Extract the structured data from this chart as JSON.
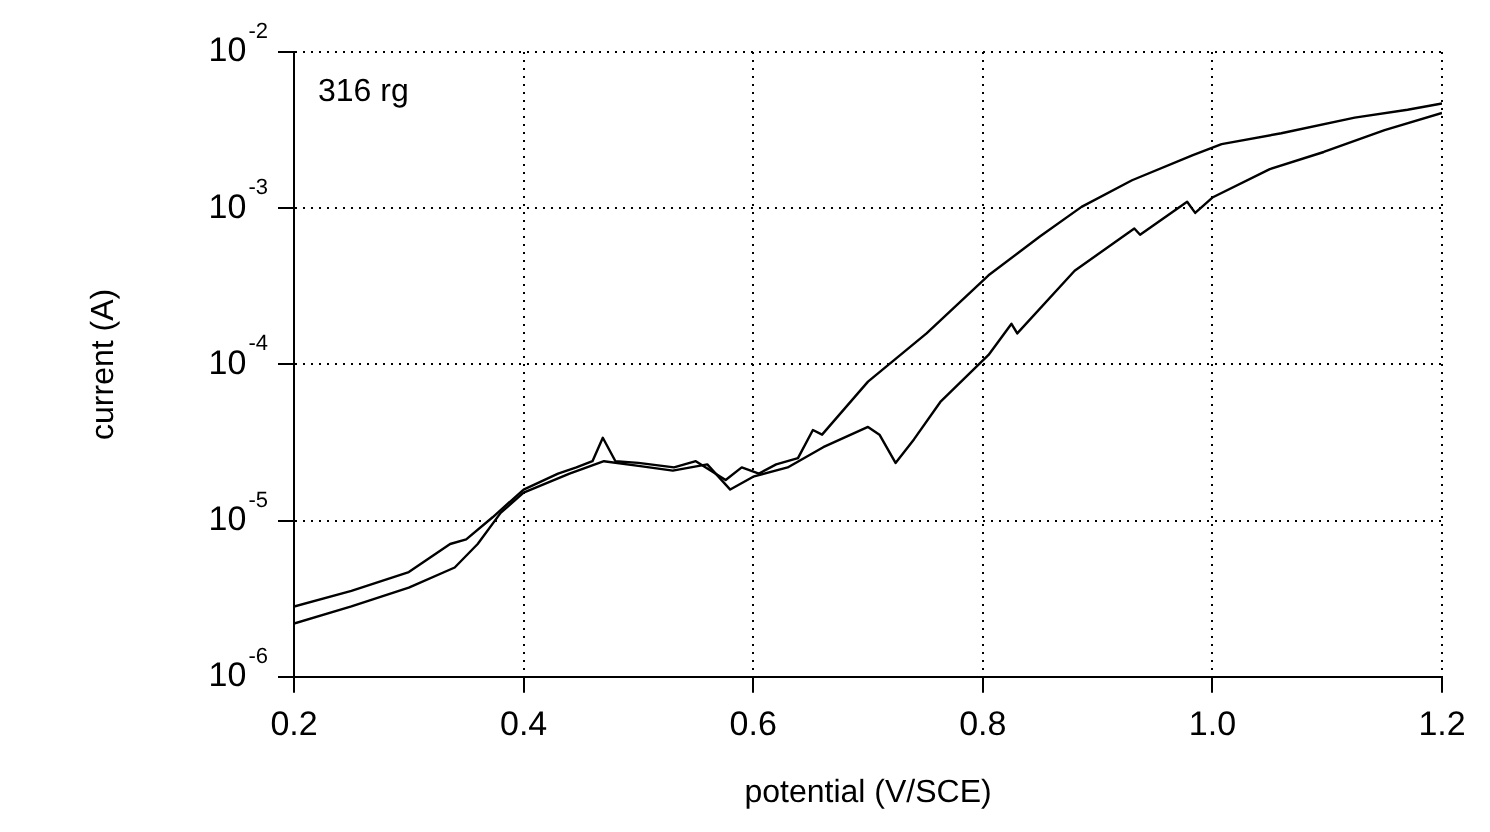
{
  "chart_data": {
    "type": "line",
    "xlabel": "potential (V/SCE)",
    "ylabel": "current (A)",
    "annotations": [
      "316 rg"
    ],
    "log": "y",
    "grid": true,
    "legend": false,
    "marker": "none",
    "line_style": "solid",
    "xlim": [
      0.2,
      1.2
    ],
    "xticks": [
      0.2,
      0.4,
      0.6,
      0.8,
      {
        "value": 1,
        "label": "1.0"
      },
      1.2
    ],
    "ylim": [
      1e-06,
      0.01
    ],
    "yticks": [
      {
        "value": 1e-06,
        "label": "10$^{-6}$"
      },
      {
        "value": 1e-05,
        "label": "10$^{-5}$"
      },
      {
        "value": 0.0001,
        "label": "10$^{-4}$"
      },
      {
        "value": 0.001,
        "label": "10$^{-3}$"
      },
      {
        "value": 0.01,
        "label": "10$^{-2}$"
      }
    ],
    "series": [
      {
        "color": "#000000",
        "x": [
          0.2,
          0.25,
          0.3,
          0.336,
          0.35,
          0.373,
          0.4,
          0.43,
          0.446,
          0.46,
          0.469,
          0.48,
          0.5,
          0.531,
          0.55,
          0.576,
          0.59,
          0.605,
          0.62,
          0.639,
          0.652,
          0.66,
          0.7,
          0.751,
          0.805,
          0.85,
          0.886,
          0.93,
          0.983,
          1.008,
          1.06,
          1.124,
          1.17,
          1.2
        ],
        "values": [
          2.82e-06,
          3.55e-06,
          4.68e-06,
          7.08e-06,
          7.59e-06,
          1.05e-05,
          1.58e-05,
          2e-05,
          2.19e-05,
          2.4e-05,
          3.39e-05,
          2.4e-05,
          2.34e-05,
          2.19e-05,
          2.4e-05,
          1.82e-05,
          2.19e-05,
          2e-05,
          2.29e-05,
          2.51e-05,
          3.8e-05,
          3.55e-05,
          7.76e-05,
          0.000158,
          0.000372,
          0.000661,
          0.00102,
          0.00151,
          0.00219,
          0.00257,
          0.00302,
          0.0038,
          0.00427,
          0.00468
        ]
      },
      {
        "color": "#000000",
        "x": [
          0.2,
          0.25,
          0.3,
          0.34,
          0.36,
          0.38,
          0.4,
          0.44,
          0.47,
          0.5,
          0.53,
          0.56,
          0.58,
          0.6,
          0.63,
          0.661,
          0.7,
          0.71,
          0.724,
          0.74,
          0.763,
          0.805,
          0.825,
          0.83,
          0.88,
          0.932,
          0.937,
          0.978,
          0.985,
          1.0,
          1.05,
          1.097,
          1.15,
          1.2
        ],
        "values": [
          2.19e-06,
          2.82e-06,
          3.72e-06,
          5.01e-06,
          7.08e-06,
          1.12e-05,
          1.51e-05,
          2e-05,
          2.4e-05,
          2.24e-05,
          2.09e-05,
          2.29e-05,
          1.58e-05,
          1.91e-05,
          2.19e-05,
          2.95e-05,
          3.98e-05,
          3.55e-05,
          2.34e-05,
          3.31e-05,
          5.75e-05,
          0.000115,
          0.000182,
          0.000158,
          0.000398,
          0.000741,
          0.000676,
          0.0011,
          0.000933,
          0.00117,
          0.00178,
          0.00229,
          0.00316,
          0.00407
        ]
      }
    ]
  }
}
